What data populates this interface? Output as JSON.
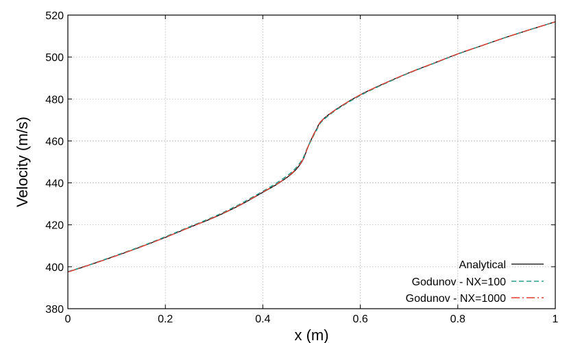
{
  "chart_data": {
    "type": "line",
    "xlabel": "x (m)",
    "ylabel": "Velocity (m/s)",
    "xlim": [
      0,
      1
    ],
    "ylim": [
      380,
      520
    ],
    "x_ticks": [
      "0",
      "0.2",
      "0.4",
      "0.6",
      "0.8",
      "1"
    ],
    "y_ticks": [
      "380",
      "400",
      "420",
      "440",
      "460",
      "480",
      "500",
      "520"
    ],
    "grid": true,
    "legend_position": "bottom-right",
    "series": [
      {
        "name": "Analytical",
        "color": "#000000",
        "style": "solid",
        "x": [
          0,
          0.05,
          0.1,
          0.15,
          0.2,
          0.25,
          0.3,
          0.35,
          0.4,
          0.43,
          0.46,
          0.48,
          0.49,
          0.495,
          0.5,
          0.505,
          0.51,
          0.52,
          0.55,
          0.6,
          0.65,
          0.7,
          0.75,
          0.8,
          0.85,
          0.9,
          0.95,
          1.0
        ],
        "y": [
          397.5,
          401.3,
          405.3,
          409.5,
          414.0,
          418.8,
          423.5,
          429.0,
          435.5,
          439.5,
          444.5,
          450.0,
          455.5,
          458.5,
          461.0,
          463.5,
          465.5,
          469.5,
          475.0,
          482.0,
          487.5,
          492.5,
          497.0,
          501.5,
          505.5,
          509.5,
          513.2,
          516.8
        ]
      },
      {
        "name": "Godunov - NX=100",
        "color": "#2a9d8f",
        "style": "dashed",
        "x": [
          0,
          0.05,
          0.1,
          0.15,
          0.2,
          0.25,
          0.3,
          0.35,
          0.4,
          0.43,
          0.46,
          0.48,
          0.49,
          0.495,
          0.5,
          0.505,
          0.51,
          0.52,
          0.55,
          0.6,
          0.65,
          0.7,
          0.75,
          0.8,
          0.85,
          0.9,
          0.95,
          1.0
        ],
        "y": [
          397.6,
          401.4,
          405.5,
          409.7,
          414.3,
          419.1,
          423.9,
          429.5,
          436.0,
          440.2,
          445.3,
          450.8,
          455.9,
          458.4,
          460.6,
          463.0,
          465.0,
          469.0,
          474.7,
          481.7,
          487.3,
          492.4,
          496.9,
          501.4,
          505.5,
          509.5,
          513.2,
          516.8
        ]
      },
      {
        "name": "Godunov - NX=1000",
        "color": "#e03a2f",
        "style": "dashdot",
        "x": [
          0,
          0.05,
          0.1,
          0.15,
          0.2,
          0.25,
          0.3,
          0.35,
          0.4,
          0.43,
          0.46,
          0.48,
          0.49,
          0.495,
          0.5,
          0.505,
          0.51,
          0.52,
          0.55,
          0.6,
          0.65,
          0.7,
          0.75,
          0.8,
          0.85,
          0.9,
          0.95,
          1.0
        ],
        "y": [
          397.5,
          401.3,
          405.3,
          409.5,
          414.0,
          418.8,
          423.6,
          429.1,
          435.6,
          439.6,
          444.7,
          450.2,
          455.6,
          458.5,
          460.9,
          463.4,
          465.4,
          469.4,
          475.0,
          482.0,
          487.5,
          492.5,
          497.0,
          501.5,
          505.5,
          509.5,
          513.2,
          516.8
        ]
      }
    ]
  }
}
